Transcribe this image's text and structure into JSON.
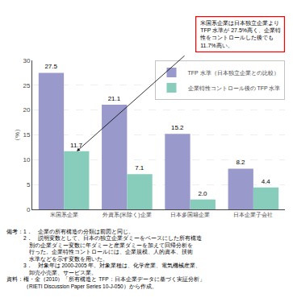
{
  "chart_data": {
    "type": "bar",
    "categories": [
      "米国系企業",
      "外資系(米除く)企業",
      "日本多国籍企業",
      "日本企業子会社"
    ],
    "series": [
      {
        "name": "TFP 水準（日本独立企業との比較）",
        "color": "#9999cc",
        "values": [
          27.5,
          21.1,
          15.2,
          8.2
        ],
        "value_labels": [
          "27.5",
          "21.1",
          "15.2",
          "8.2"
        ]
      },
      {
        "name": "企業特性コントロール後の TFP 水準",
        "color": "#88ccbb",
        "values": [
          11.7,
          7.1,
          2.0,
          4.4
        ],
        "value_labels": [
          "11.7",
          "7.1",
          "2.0",
          "4.4"
        ]
      }
    ],
    "ylabel": "（%）",
    "ylim": [
      0,
      30
    ],
    "yticks": [
      0,
      5,
      10,
      15,
      20,
      25,
      30
    ],
    "grid": true,
    "legend": "upper right",
    "data_labels": true,
    "annotations": [
      "米国系企業は日本独立企業より\nTFP 水準が 27.5%高く、企業特\n性をコントロールした後でも\n11.7%高い。"
    ],
    "notes": [
      "備考：1．　企業の所有構造の分類は前図と同じ。",
      "　　　2．　説明変数として、日本の独立企業ダミーをベースにした所有構造",
      "　　　　別の企業ダミー変数に年ダミーと産業ダミーを加えて回帰分析を",
      "　　　　行った。企業特性コントロールには、企業規模、人的資本、技術",
      "　　　　水準などを示す変数を用いた。",
      "　　　3．　対象年は 2000-2005 年。対象業種は、化学産業、電気機械産業、",
      "　　　　卸売小売業、サービス業。",
      "資料：権・金（2010）「所有構造と TFP：日本企業データに基づく実証分析」",
      "　　　（RIETI Discussion Paper Series 10-J-050）から作成。"
    ]
  }
}
